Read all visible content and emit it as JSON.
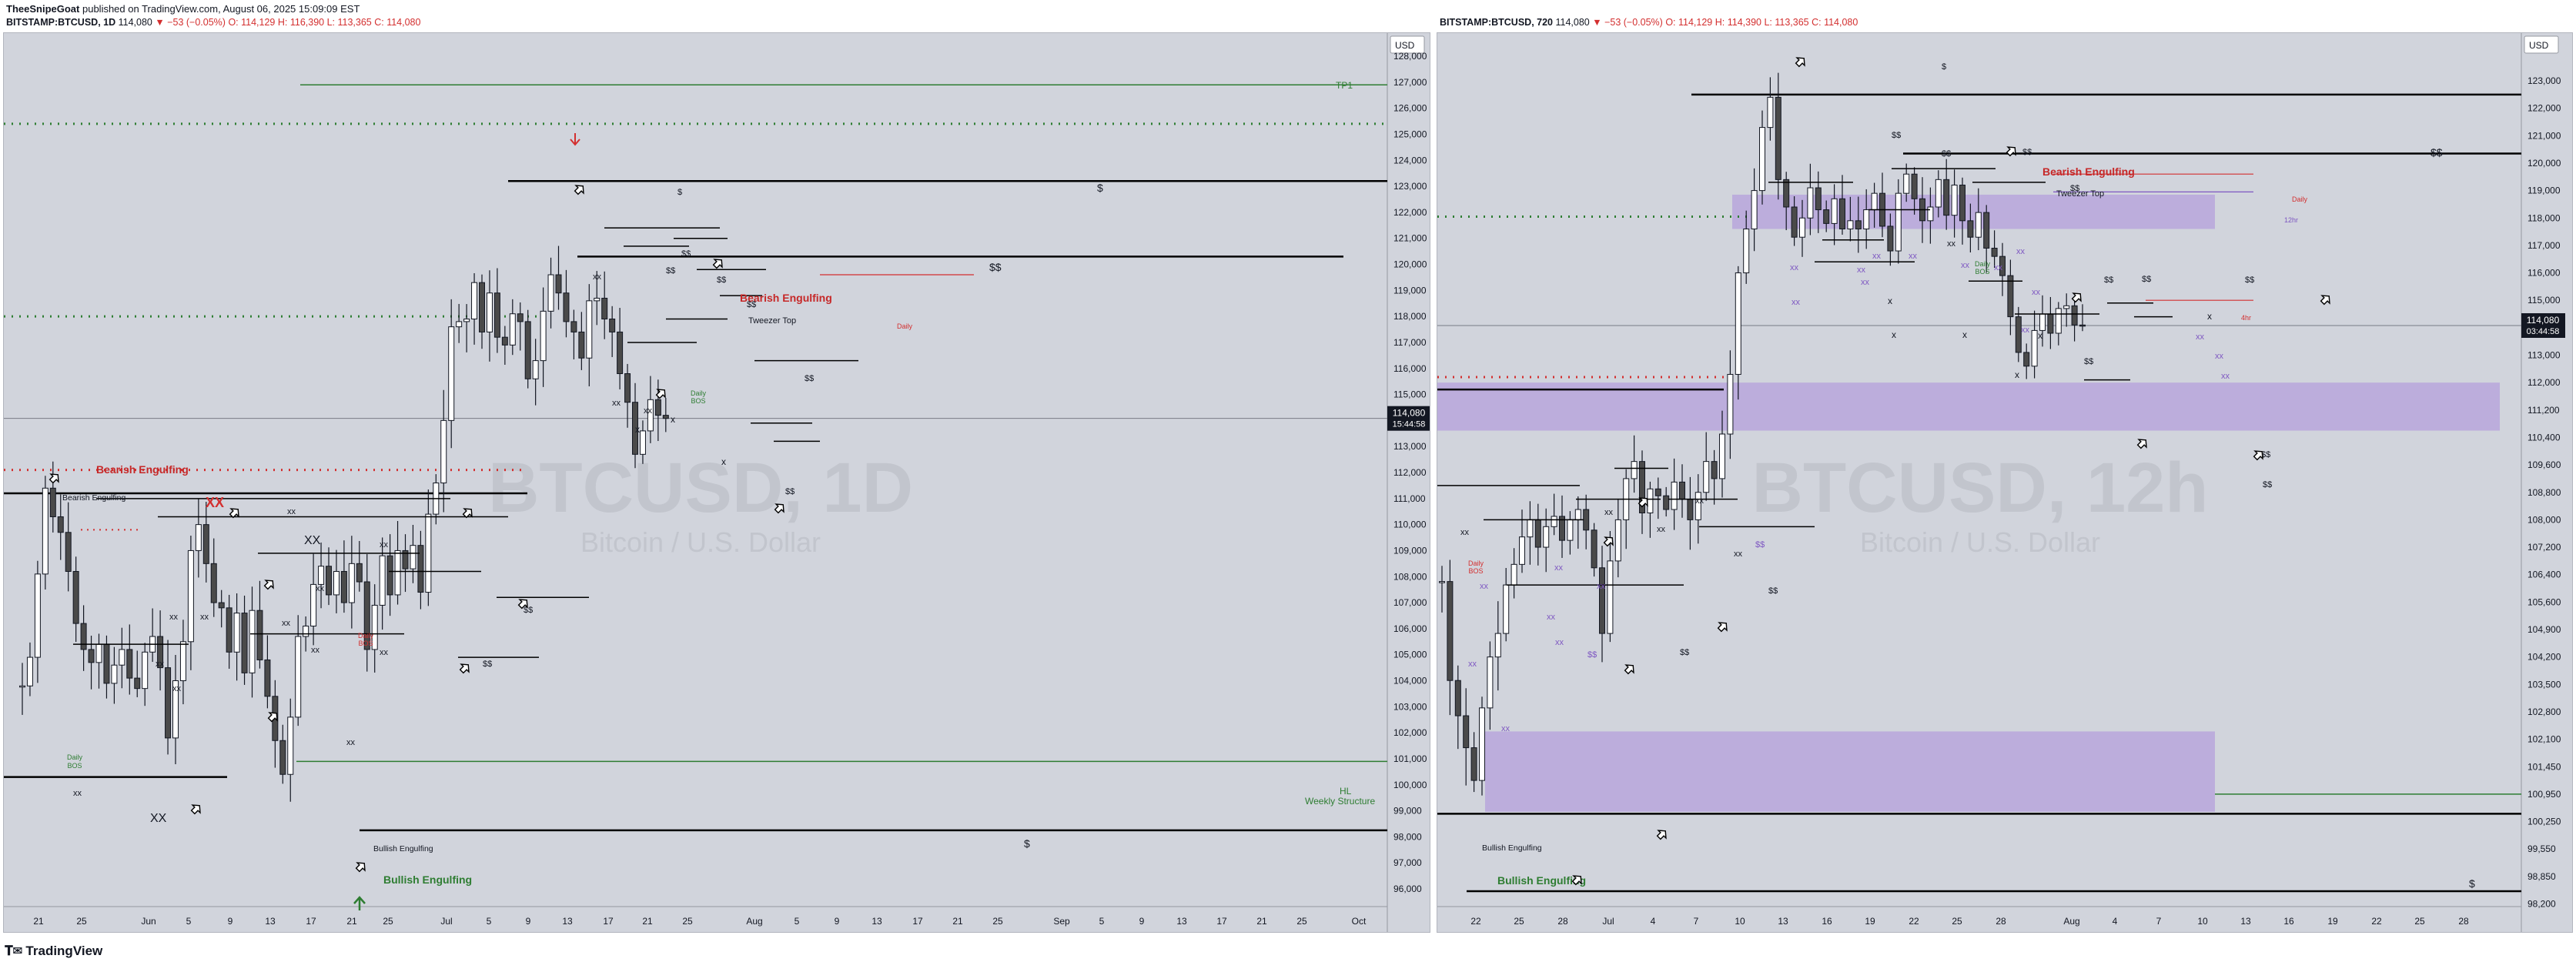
{
  "header": {
    "author": "TheeSnipeGoat",
    "published_text": "published on TradingView.com, August 06, 2025 15:09:09 EST"
  },
  "left": {
    "symbol": "BITSTAMP:BTCUSD, 1D",
    "price": "114,080",
    "change": "▼ −53 (−0.05%)",
    "o": "O: 114,129",
    "h": "H: 116,390",
    "l": "L: 113,365",
    "c": "C: 114,080",
    "watermark_title": "BTCUSD, 1D",
    "watermark_sub": "Bitcoin / U.S. Dollar",
    "currency": "USD",
    "last_price": "114,080",
    "countdown": "15:44:58",
    "y_ticks": [
      "128,000",
      "127,000",
      "126,000",
      "125,000",
      "124,000",
      "123,000",
      "122,000",
      "121,000",
      "120,000",
      "119,000",
      "118,000",
      "117,000",
      "116,000",
      "115,000",
      "114,000",
      "113,000",
      "112,000",
      "111,000",
      "110,000",
      "109,000",
      "108,000",
      "107,000",
      "106,000",
      "105,000",
      "104,000",
      "103,000",
      "102,000",
      "101,000",
      "100,000",
      "99,000",
      "98,000",
      "97,000",
      "96,000"
    ],
    "x_ticks": [
      "21",
      "25",
      "Jun",
      "5",
      "9",
      "13",
      "17",
      "21",
      "25",
      "Jul",
      "5",
      "9",
      "13",
      "17",
      "21",
      "25",
      "Aug",
      "5",
      "9",
      "13",
      "17",
      "21",
      "25",
      "Sep",
      "5",
      "9",
      "13",
      "17",
      "21",
      "25",
      "Oct"
    ],
    "annotations": {
      "tp1": "TP1",
      "bearish_engulfing_1": "Bearish Engulfing",
      "bearish_engulfing_small": "Bearish Engulfing",
      "bearish_engulfing_2": "Bearish Engulfing",
      "tweezer": "Tweezer Top",
      "daily": "Daily",
      "daily_bos_1": "Daily",
      "daily_bos_1b": "BOS",
      "daily_bos_2": "Daily",
      "daily_bos_2b": "BOS",
      "daily_bos_3": "Daily",
      "daily_bos_3b": "BOS",
      "hl": "HL",
      "weekly": "Weekly Structure",
      "bullish_engulfing_small": "Bullish Engulfing",
      "bullish_engulfing": "Bullish Engulfing",
      "xx": "XX",
      "xx_small": "xx",
      "x": "x",
      "dollar": "$",
      "ddollar": "$$"
    }
  },
  "right": {
    "symbol": "BITSTAMP:BTCUSD, 720",
    "price": "114,080",
    "change": "▼ −53 (−0.05%)",
    "o": "O: 114,129",
    "h": "H: 114,390",
    "l": "L: 113,365",
    "c": "C: 114,080",
    "watermark_title": "BTCUSD, 12h",
    "watermark_sub": "Bitcoin / U.S. Dollar",
    "currency": "USD",
    "last_price": "114,080",
    "countdown": "03:44:58",
    "y_ticks": [
      "123,000",
      "122,000",
      "121,000",
      "120,000",
      "119,000",
      "118,000",
      "117,000",
      "116,000",
      "115,000",
      "114,000",
      "113,000",
      "112,000",
      "111,200",
      "110,400",
      "109,600",
      "108,800",
      "108,000",
      "107,200",
      "106,400",
      "105,600",
      "104,900",
      "104,200",
      "103,500",
      "102,800",
      "102,100",
      "101,450",
      "100,950",
      "100,250",
      "99,550",
      "98,850",
      "98,200"
    ],
    "x_ticks": [
      "22",
      "25",
      "28",
      "Jul",
      "4",
      "7",
      "10",
      "13",
      "16",
      "19",
      "22",
      "25",
      "28",
      "Aug",
      "4",
      "7",
      "10",
      "13",
      "16",
      "19",
      "22",
      "25",
      "28"
    ],
    "annotations": {
      "bearish_engulfing": "Bearish Engulfing",
      "tweezer": "Tweezer Top",
      "daily": "Daily",
      "h12": "12hr",
      "h4": "4hr",
      "daily_bos_1": "Daily",
      "daily_bos_1b": "BOS",
      "daily_bos_2": "Daily",
      "daily_bos_2b": "BOS",
      "bullish_engulfing_small": "Bullish Engulfing",
      "bullish_engulfing": "Bullish Engulfing",
      "xx": "xx",
      "x": "x",
      "dollar": "$",
      "ddollar": "$$"
    }
  },
  "colors": {
    "pane_bg": "#d1d4dc",
    "candle_up": "#ffffff",
    "candle_down": "#4a4a4a",
    "green_line": "#2e7d32",
    "red_dotted": "#d32f2f",
    "bearish_text": "#c62828",
    "bullish_text": "#2e7d32",
    "purple_zone": "#b39ddb"
  },
  "footer": {
    "brand": "TradingView"
  }
}
